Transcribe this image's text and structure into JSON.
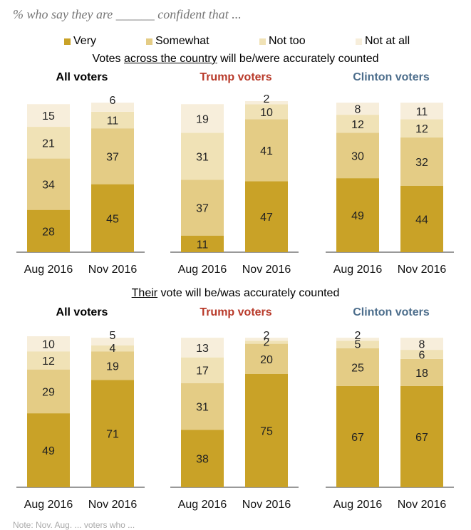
{
  "subtitle": "% who say they are ______ confident that ...",
  "legend": [
    {
      "label": "Very",
      "color": "#C9A227"
    },
    {
      "label": "Somewhat",
      "color": "#E4CC85"
    },
    {
      "label": "Not too",
      "color": "#F0E2B6"
    },
    {
      "label": "Not at all",
      "color": "#F7EEDB"
    }
  ],
  "panels": [
    {
      "title_pre": "Votes ",
      "title_u": "across the country",
      "title_post": " will be/were accurately counted"
    },
    {
      "title_pre": "",
      "title_u": "Their",
      "title_post": " vote will be/was accurately counted"
    }
  ],
  "groups": [
    {
      "name": "All voters",
      "color": "#000000"
    },
    {
      "name": "Trump voters",
      "color": "#B83A2A"
    },
    {
      "name": "Clinton voters",
      "color": "#4D6E8C"
    }
  ],
  "footnote": "Note: Nov. Aug. ... voters who ... ",
  "chart_data": {
    "type": "bar",
    "stacked": true,
    "series_order": [
      "Very",
      "Somewhat",
      "Not too",
      "Not at all"
    ],
    "categories": [
      "Aug 2016",
      "Nov 2016"
    ],
    "panels": [
      {
        "groups": [
          {
            "name": "All voters",
            "bars": [
              {
                "category": "Aug 2016",
                "values": [
                  28,
                  34,
                  21,
                  15
                ]
              },
              {
                "category": "Nov 2016",
                "values": [
                  45,
                  37,
                  11,
                  6
                ]
              }
            ]
          },
          {
            "name": "Trump voters",
            "bars": [
              {
                "category": "Aug 2016",
                "values": [
                  11,
                  37,
                  31,
                  19
                ]
              },
              {
                "category": "Nov 2016",
                "values": [
                  47,
                  41,
                  10,
                  2
                ]
              }
            ]
          },
          {
            "name": "Clinton voters",
            "bars": [
              {
                "category": "Aug 2016",
                "values": [
                  49,
                  30,
                  12,
                  8
                ]
              },
              {
                "category": "Nov 2016",
                "values": [
                  44,
                  32,
                  12,
                  11
                ]
              }
            ]
          }
        ]
      },
      {
        "groups": [
          {
            "name": "All voters",
            "bars": [
              {
                "category": "Aug 2016",
                "values": [
                  49,
                  29,
                  12,
                  10
                ]
              },
              {
                "category": "Nov 2016",
                "values": [
                  71,
                  19,
                  4,
                  5
                ]
              }
            ]
          },
          {
            "name": "Trump voters",
            "bars": [
              {
                "category": "Aug 2016",
                "values": [
                  38,
                  31,
                  17,
                  13
                ]
              },
              {
                "category": "Nov 2016",
                "values": [
                  75,
                  20,
                  2,
                  2
                ]
              }
            ]
          },
          {
            "name": "Clinton voters",
            "bars": [
              {
                "category": "Aug 2016",
                "values": [
                  67,
                  25,
                  5,
                  2
                ]
              },
              {
                "category": "Nov 2016",
                "values": [
                  67,
                  18,
                  6,
                  8
                ]
              }
            ]
          }
        ]
      }
    ]
  }
}
